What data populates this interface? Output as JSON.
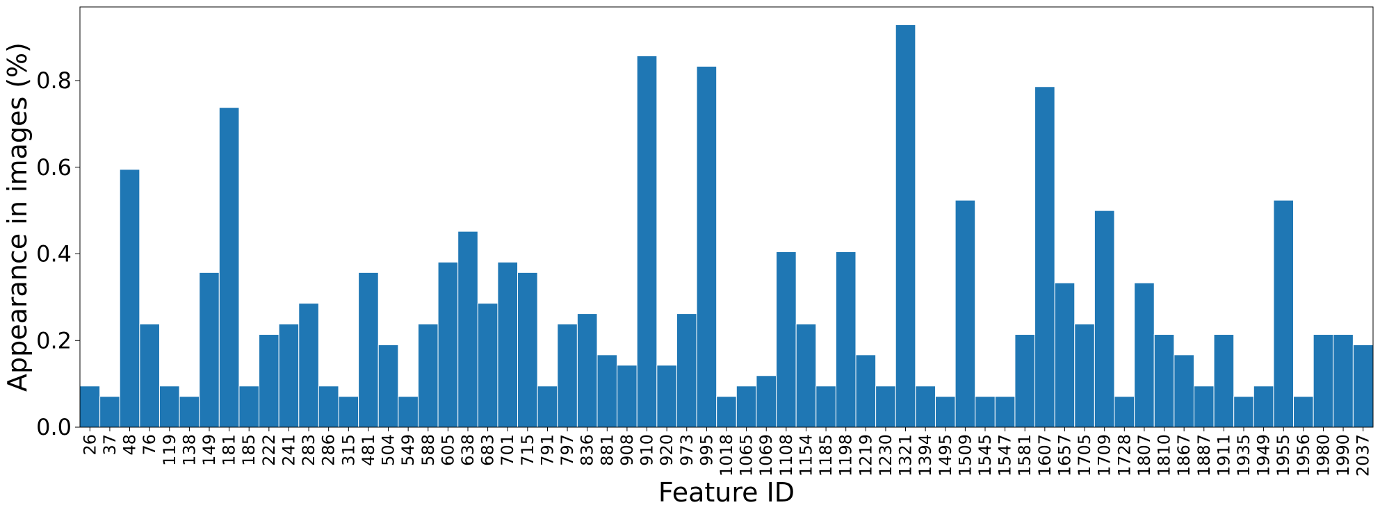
{
  "chart_data": {
    "type": "bar",
    "title": "",
    "xlabel": "Feature ID",
    "ylabel": "Appearance in images (%)",
    "ylim": [
      0,
      0.97
    ],
    "yticks": [
      "0.0",
      "0.2",
      "0.4",
      "0.6",
      "0.8"
    ],
    "bar_color": "#1f77b4",
    "grid": false,
    "categories": [
      "26",
      "37",
      "48",
      "76",
      "119",
      "138",
      "149",
      "181",
      "185",
      "222",
      "241",
      "283",
      "286",
      "315",
      "481",
      "504",
      "549",
      "588",
      "605",
      "638",
      "683",
      "701",
      "715",
      "791",
      "797",
      "836",
      "881",
      "908",
      "910",
      "920",
      "973",
      "995",
      "1018",
      "1065",
      "1069",
      "1108",
      "1154",
      "1185",
      "1198",
      "1219",
      "1230",
      "1321",
      "1394",
      "1495",
      "1509",
      "1545",
      "1547",
      "1581",
      "1607",
      "1657",
      "1705",
      "1709",
      "1728",
      "1807",
      "1810",
      "1867",
      "1887",
      "1911",
      "1935",
      "1949",
      "1955",
      "1956",
      "1980",
      "1990",
      "2037"
    ],
    "values": [
      0.095,
      0.071,
      0.595,
      0.238,
      0.095,
      0.071,
      0.357,
      0.738,
      0.095,
      0.214,
      0.238,
      0.286,
      0.095,
      0.071,
      0.357,
      0.19,
      0.071,
      0.238,
      0.381,
      0.452,
      0.286,
      0.381,
      0.357,
      0.095,
      0.238,
      0.262,
      0.167,
      0.143,
      0.857,
      0.143,
      0.262,
      0.833,
      0.071,
      0.095,
      0.119,
      0.405,
      0.238,
      0.095,
      0.405,
      0.167,
      0.095,
      0.929,
      0.095,
      0.071,
      0.524,
      0.071,
      0.071,
      0.214,
      0.786,
      0.333,
      0.238,
      0.5,
      0.071,
      0.333,
      0.214,
      0.167,
      0.095,
      0.214,
      0.071,
      0.095,
      0.524,
      0.071,
      0.214,
      0.214,
      0.19
    ]
  }
}
